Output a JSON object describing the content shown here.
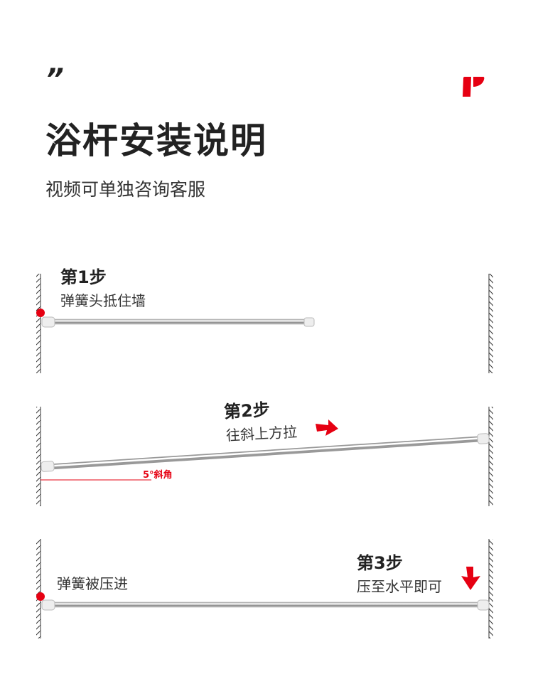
{
  "header": {
    "quote_mark": "”",
    "title": "浴杆安装说明",
    "subtitle": "视频可单独咨询客服",
    "brand_color": "#e60012"
  },
  "steps": [
    {
      "label": "第1步",
      "description": "弹簧头抵住墙"
    },
    {
      "label": "第2步",
      "description": "往斜上方拉",
      "angle_label": "5°斜角"
    },
    {
      "label": "第3步",
      "description": "压至水平即可",
      "note": "弹簧被压进"
    }
  ]
}
